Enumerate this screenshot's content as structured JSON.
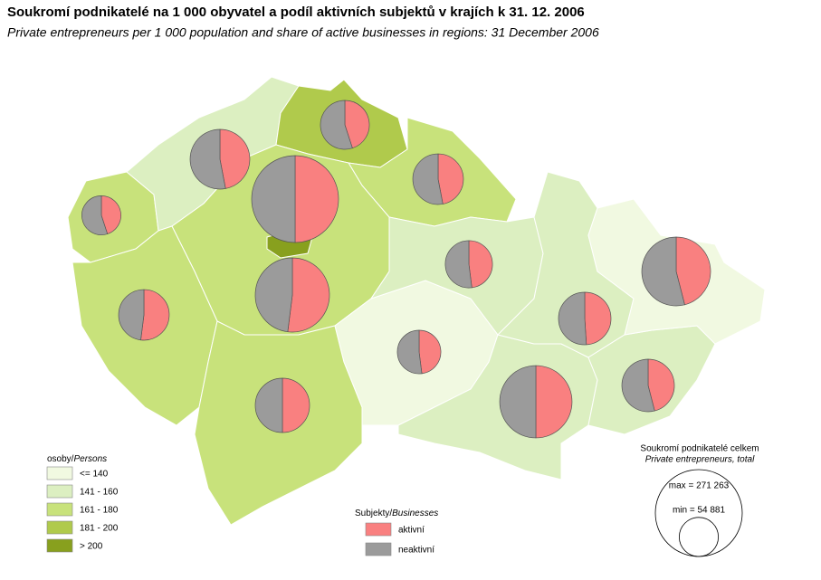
{
  "chart_data": {
    "type": "pie_map",
    "title": "Soukromí podnikatelé na 1 000 obyvatel a podíl aktivních subjektů v krajích k 31. 12. 2006",
    "subtitle": "Private entrepreneurs per 1 000 population and share of active businesses in regions: 31 December 2006",
    "persons_legend": {
      "title": "osoby/",
      "title_en": "Persons",
      "classes": [
        {
          "label": "<= 140",
          "color": "#f1f9e1"
        },
        {
          "label": "141 - 160",
          "color": "#dcefc1"
        },
        {
          "label": "161 - 180",
          "color": "#c8e27b"
        },
        {
          "label": "181 - 200",
          "color": "#b0ca4c"
        },
        {
          "label": "> 200",
          "color": "#88a01e"
        }
      ]
    },
    "businesses_legend": {
      "title": "Subjekty/",
      "title_en": "Businesses",
      "items": [
        {
          "label": "aktivní",
          "color": "#f98080"
        },
        {
          "label": "neaktivní",
          "color": "#9b9b9b"
        }
      ]
    },
    "size_legend": {
      "title": "Soukromí podnikatelé celkem",
      "title_en": "Private entrepreneurs, total",
      "max": {
        "value": 271263,
        "label": "max = 271 263"
      },
      "min": {
        "value": 54881,
        "label": "min = 54 881"
      }
    },
    "regions": [
      {
        "class": 2,
        "active_share": 45,
        "total": 54881
      },
      {
        "class": 1,
        "active_share": 47,
        "total": 128000
      },
      {
        "class": 3,
        "active_share": 45,
        "total": 86000
      },
      {
        "class": 2,
        "active_share": 47,
        "total": 92000
      },
      {
        "class": 2,
        "active_share": 52,
        "total": 198000
      },
      {
        "class": 4,
        "active_share": 50,
        "total": 271263
      },
      {
        "class": 2,
        "active_share": 52,
        "total": 92000
      },
      {
        "class": 2,
        "active_share": 50,
        "total": 106000
      },
      {
        "class": 0,
        "active_share": 48,
        "total": 68000
      },
      {
        "class": 1,
        "active_share": 48,
        "total": 80000
      },
      {
        "class": 1,
        "active_share": 50,
        "total": 188000
      },
      {
        "class": 1,
        "active_share": 49,
        "total": 99000
      },
      {
        "class": 1,
        "active_share": 46,
        "total": 99000
      },
      {
        "class": 0,
        "active_share": 46,
        "total": 170000
      }
    ]
  }
}
